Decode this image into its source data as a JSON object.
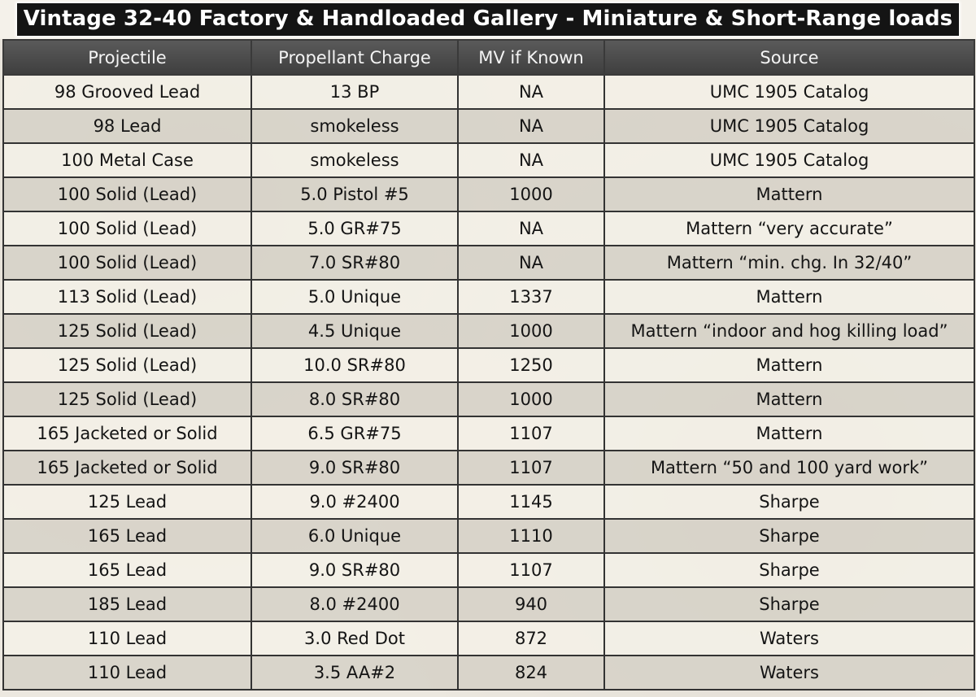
{
  "title": "Vintage 32-40 Factory & Handloaded Gallery - Miniature & Short-Range loads",
  "columns": [
    "Projectile",
    "Propellant Charge",
    "MV if Known",
    "Source"
  ],
  "rows": [
    [
      "98 Grooved Lead",
      "13 BP",
      "NA",
      "UMC 1905 Catalog"
    ],
    [
      "98 Lead",
      "smokeless",
      "NA",
      "UMC 1905 Catalog"
    ],
    [
      "100 Metal Case",
      "smokeless",
      "NA",
      "UMC 1905 Catalog"
    ],
    [
      "100 Solid (Lead)",
      "5.0 Pistol #5",
      "1000",
      "Mattern"
    ],
    [
      "100 Solid (Lead)",
      "5.0 GR#75",
      "NA",
      "Mattern “very accurate”"
    ],
    [
      "100 Solid (Lead)",
      "7.0 SR#80",
      "NA",
      "Mattern “min. chg. In 32/40”"
    ],
    [
      "113 Solid (Lead)",
      "5.0 Unique",
      "1337",
      "Mattern"
    ],
    [
      "125 Solid (Lead)",
      "4.5 Unique",
      "1000",
      "Mattern “indoor and hog killing load”"
    ],
    [
      "125 Solid (Lead)",
      "10.0 SR#80",
      "1250",
      "Mattern"
    ],
    [
      "125 Solid (Lead)",
      "8.0 SR#80",
      "1000",
      "Mattern"
    ],
    [
      "165 Jacketed or Solid",
      "6.5 GR#75",
      "1107",
      "Mattern"
    ],
    [
      "165 Jacketed or Solid",
      "9.0 SR#80",
      "1107",
      "Mattern “50 and 100 yard work”"
    ],
    [
      "125 Lead",
      "9.0 #2400",
      "1145",
      "Sharpe"
    ],
    [
      "165 Lead",
      "6.0 Unique",
      "1110",
      "Sharpe"
    ],
    [
      "165 Lead",
      "9.0 SR#80",
      "1107",
      "Sharpe"
    ],
    [
      "185 Lead",
      "8.0 #2400",
      "940",
      "Sharpe"
    ],
    [
      "110 Lead",
      "3.0 Red Dot",
      "872",
      "Waters"
    ],
    [
      "110 Lead",
      "3.5 AA#2",
      "824",
      "Waters"
    ]
  ]
}
